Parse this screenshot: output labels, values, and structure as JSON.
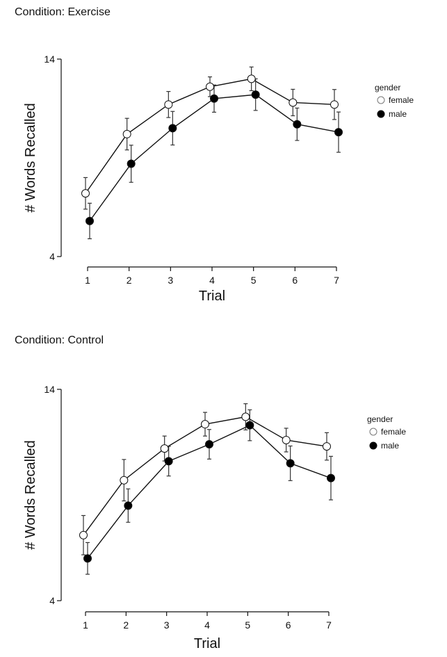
{
  "chart_data": [
    {
      "type": "line",
      "title": "Condition: Exercise",
      "xlabel": "Trial",
      "ylabel": "# Words Recalled",
      "x": [
        1,
        2,
        3,
        4,
        5,
        6,
        7
      ],
      "x_tick_labels": [
        "1",
        "2",
        "3",
        "4",
        "5",
        "6",
        "7"
      ],
      "y_tick_labels": [
        "4",
        "14"
      ],
      "ylim": [
        4,
        14
      ],
      "xlim": [
        1,
        7
      ],
      "grid": false,
      "legend": {
        "title": "gender",
        "placement": "right",
        "entries": [
          "female",
          "male"
        ]
      },
      "series": [
        {
          "name": "female",
          "marker": "open-circle",
          "color": "#ffffff",
          "values": [
            7.2,
            10.2,
            11.7,
            12.6,
            13.0,
            11.8,
            11.7
          ],
          "error": [
            0.8,
            0.8,
            0.66,
            0.5,
            0.6,
            0.67,
            0.76
          ]
        },
        {
          "name": "male",
          "marker": "filled-circle",
          "color": "#000000",
          "values": [
            5.8,
            8.7,
            10.5,
            12.0,
            12.2,
            10.7,
            10.3
          ],
          "error": [
            0.9,
            0.94,
            0.85,
            0.69,
            0.8,
            0.82,
            1.02
          ]
        }
      ]
    },
    {
      "type": "line",
      "title": "Condition: Control",
      "xlabel": "Trial",
      "ylabel": "# Words Recalled",
      "x": [
        1,
        2,
        3,
        4,
        5,
        6,
        7
      ],
      "x_tick_labels": [
        "1",
        "2",
        "3",
        "4",
        "5",
        "6",
        "7"
      ],
      "y_tick_labels": [
        "4",
        "14"
      ],
      "ylim": [
        4,
        14
      ],
      "xlim": [
        1,
        7
      ],
      "grid": false,
      "legend": {
        "title": "gender",
        "placement": "right",
        "entries": [
          "female",
          "male"
        ]
      },
      "series": [
        {
          "name": "female",
          "marker": "open-circle",
          "color": "#ffffff",
          "values": [
            7.1,
            9.7,
            11.2,
            12.35,
            12.7,
            11.6,
            11.3
          ],
          "error": [
            0.93,
            0.98,
            0.59,
            0.56,
            0.62,
            0.56,
            0.65
          ]
        },
        {
          "name": "male",
          "marker": "filled-circle",
          "color": "#000000",
          "values": [
            6.0,
            8.5,
            10.6,
            11.4,
            12.3,
            10.5,
            9.8
          ],
          "error": [
            0.75,
            0.79,
            0.7,
            0.7,
            0.73,
            0.82,
            1.03
          ]
        }
      ]
    }
  ]
}
